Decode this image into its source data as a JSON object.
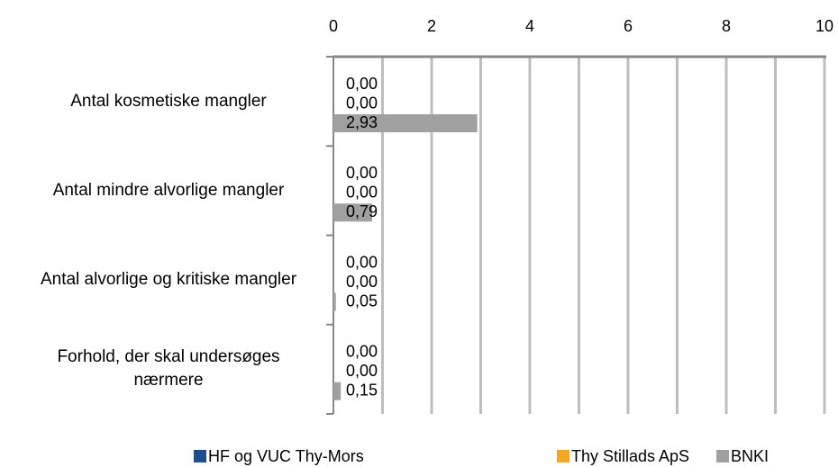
{
  "chart_data": {
    "type": "hbar",
    "categories": [
      "Antal kosmetiske mangler",
      "Antal mindre alvorlige mangler",
      "Antal alvorlige og kritiske mangler",
      "Forhold, der skal undersøges nærmere"
    ],
    "series": [
      {
        "name": "HF og VUC Thy-Mors",
        "color": "#1f4e8c",
        "values": [
          0,
          0,
          0,
          0
        ],
        "value_labels": [
          "0,00",
          "0,00",
          "0,00",
          "0,00"
        ]
      },
      {
        "name": "Thy Stillads ApS",
        "color": "#f5a623",
        "values": [
          0,
          0,
          0,
          0
        ],
        "value_labels": [
          "0,00",
          "0,00",
          "0,00",
          "0,00"
        ]
      },
      {
        "name": "BNKI",
        "color": "#a0a0a0",
        "values": [
          2.93,
          0.79,
          0.05,
          0.15
        ],
        "value_labels": [
          "2,93",
          "0,79",
          "0,05",
          "0,15"
        ]
      }
    ],
    "xlim": [
      0,
      10
    ],
    "xticks": [
      0,
      2,
      4,
      6,
      8,
      10
    ],
    "minor_xticks": [
      1,
      3,
      5,
      7,
      9
    ],
    "grid": true,
    "legend": "bottom"
  }
}
